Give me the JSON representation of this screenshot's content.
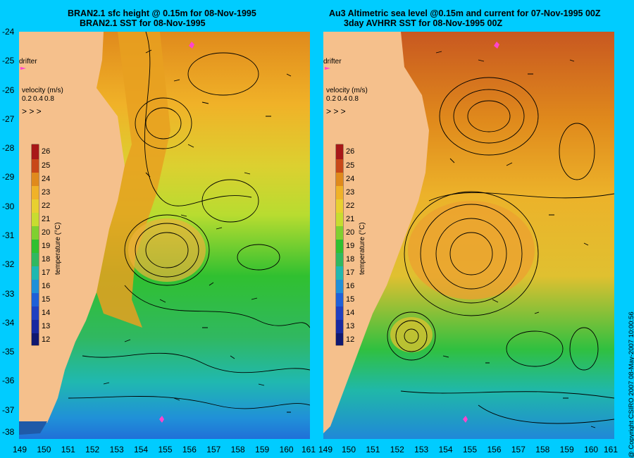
{
  "left_panel": {
    "title_line1": "BRAN2.1 sfc height @ 0.15m for 08-Nov-1995",
    "title_line2": "BRAN2.1 SST for 08-Nov-1995"
  },
  "right_panel": {
    "title_line1": "Au3 Altimetric sea level  @0.15m and current for 07-Nov-1995 00Z",
    "title_line2": "3day AVHRR SST for 08-Nov-1995 00Z"
  },
  "legend": {
    "drifter_label": "drifter",
    "velocity_label": "velocity (m/s)",
    "velocity_ticks": [
      "0.2",
      "0.4",
      "0.8"
    ],
    "colorbar_title": "temperature (°C)",
    "colorbar_ticks": [
      "26",
      "25",
      "24",
      "23",
      "22",
      "21",
      "20",
      "19",
      "18",
      "17",
      "16",
      "15",
      "14",
      "13",
      "12"
    ]
  },
  "y_axis_labels": [
    "-24",
    "-25",
    "-26",
    "-27",
    "-28",
    "-29",
    "-30",
    "-31",
    "-32",
    "-33",
    "-34",
    "-35",
    "-36",
    "-37",
    "-38"
  ],
  "x_axis_labels_left": [
    "149",
    "150",
    "151",
    "152",
    "153",
    "154",
    "155",
    "156",
    "157",
    "158",
    "159",
    "160",
    "161"
  ],
  "x_axis_labels_right": [
    "149",
    "150",
    "151",
    "152",
    "153",
    "154",
    "155",
    "156",
    "157",
    "158",
    "159",
    "160",
    "161"
  ],
  "copyright": "@ Copyright CSIRO 2007  08-May-2007 10:00:56",
  "colors": {
    "background": "#00ccff",
    "land": "#f5c08c",
    "drifter": "#ff44cc"
  }
}
